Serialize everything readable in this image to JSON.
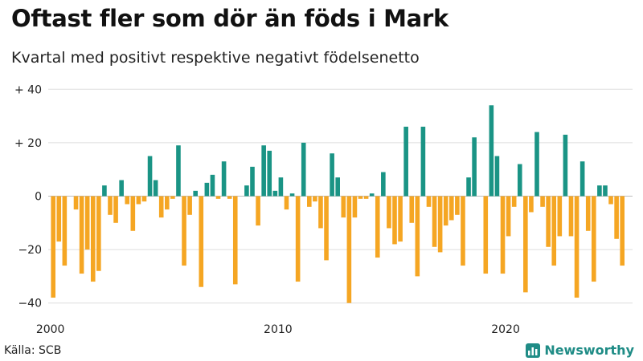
{
  "header": {
    "title": "Oftast fler som dör än föds i Mark",
    "subtitle": "Kvartal med positivt respektive negativt födelsenetto"
  },
  "footer": {
    "source": "Källa: SCB",
    "brand": "Newsworthy",
    "brand_icon": "bar-chart-logo-icon"
  },
  "colors": {
    "positive": "#1a9485",
    "negative": "#f5a623",
    "grid": "#dddddd",
    "brand": "#1f8c86"
  },
  "chart_data": {
    "type": "bar",
    "x_start": "2000 Q1",
    "x_ticks": [
      "2000",
      "2010",
      "2020"
    ],
    "y_ticks": [
      {
        "value": 40,
        "label": "+ 40"
      },
      {
        "value": 20,
        "label": "+ 20"
      },
      {
        "value": 0,
        "label": "0"
      },
      {
        "value": -20,
        "label": "−20"
      },
      {
        "value": -40,
        "label": "−40"
      }
    ],
    "ylim": [
      -40,
      40
    ],
    "grid": true,
    "values": [
      -38,
      -17,
      -26,
      0,
      -5,
      -29,
      -20,
      -32,
      -28,
      4,
      -7,
      -10,
      6,
      -3,
      -13,
      -3,
      -2,
      15,
      6,
      -8,
      -5,
      -1,
      19,
      -26,
      -7,
      2,
      -34,
      5,
      8,
      -1,
      13,
      -1,
      -33,
      0,
      4,
      11,
      -11,
      19,
      17,
      2,
      7,
      -5,
      1,
      -32,
      20,
      -4,
      -2,
      -12,
      -24,
      16,
      7,
      -8,
      -40,
      -8,
      -1,
      -1,
      1,
      -23,
      9,
      -12,
      -18,
      -17,
      26,
      -10,
      -30,
      26,
      -4,
      -19,
      -21,
      -11,
      -9,
      -7,
      -26,
      7,
      22,
      0,
      -29,
      34,
      15,
      -29,
      -15,
      -4,
      12,
      -36,
      -6,
      24,
      -4,
      -19,
      -26,
      -15,
      23,
      -15,
      -38,
      13,
      -13,
      -32,
      4,
      4,
      -3,
      -16,
      -26
    ]
  }
}
